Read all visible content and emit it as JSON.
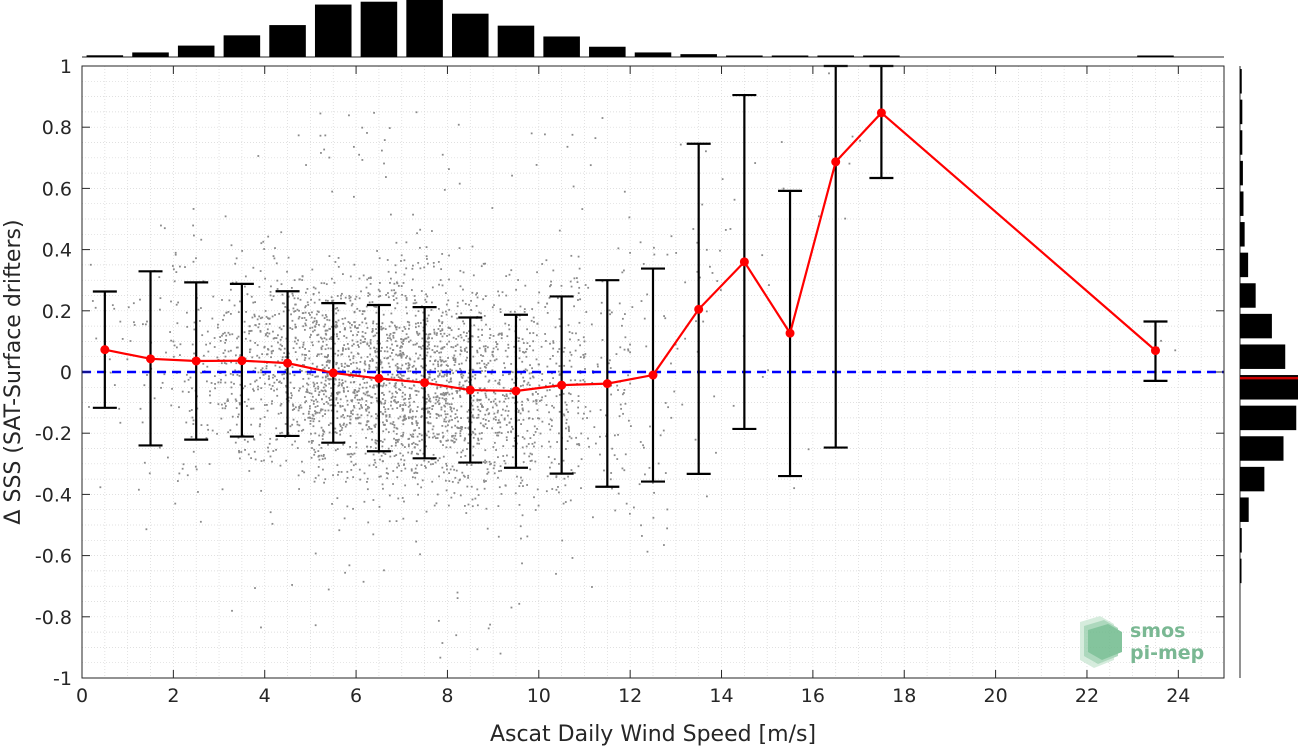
{
  "chart_data": {
    "type": "scatter",
    "xlabel": "Ascat Daily Wind Speed [m/s]",
    "ylabel": "Δ SSS (SAT-Surface drifters)",
    "xlim": [
      0,
      25
    ],
    "ylim": [
      -1,
      1
    ],
    "x_ticks": [
      0,
      2,
      4,
      6,
      8,
      10,
      12,
      14,
      16,
      18,
      20,
      22,
      24
    ],
    "y_ticks": [
      -1,
      -0.8,
      -0.6,
      -0.4,
      -0.2,
      0,
      0.2,
      0.4,
      0.6,
      0.8,
      1
    ],
    "x_tick_labels": [
      "0",
      "2",
      "4",
      "6",
      "8",
      "10",
      "12",
      "14",
      "16",
      "18",
      "20",
      "22",
      "24"
    ],
    "y_tick_labels": [
      "-1",
      "-0.8",
      "-0.6",
      "-0.4",
      "-0.2",
      "0",
      "0.2",
      "0.4",
      "0.6",
      "0.8",
      "1"
    ],
    "grid": "minor dotted",
    "reference_line": {
      "y": 0,
      "color": "#0000ff",
      "style": "dashed"
    },
    "series": [
      {
        "type": "line-errorbar",
        "color": "#ff0000",
        "x": [
          0.5,
          1.5,
          2.5,
          3.5,
          4.5,
          5.5,
          6.5,
          7.5,
          8.5,
          9.5,
          10.5,
          11.5,
          12.5,
          13.5,
          14.5,
          15.5,
          16.5,
          17.5,
          23.5
        ],
        "mean": [
          0.073,
          0.043,
          0.036,
          0.037,
          0.029,
          -0.003,
          -0.021,
          -0.035,
          -0.059,
          -0.062,
          -0.043,
          -0.038,
          -0.01,
          0.205,
          0.36,
          0.127,
          0.687,
          0.847,
          0.07
        ],
        "err_low": [
          -0.117,
          -0.24,
          -0.221,
          -0.211,
          -0.209,
          -0.231,
          -0.259,
          -0.282,
          -0.296,
          -0.313,
          -0.332,
          -0.375,
          -0.358,
          -0.333,
          -0.186,
          -0.34,
          -0.247,
          0.634,
          -0.029
        ],
        "err_high": [
          0.263,
          0.329,
          0.293,
          0.288,
          0.264,
          0.225,
          0.219,
          0.212,
          0.178,
          0.187,
          0.247,
          0.3,
          0.338,
          0.746,
          0.905,
          0.592,
          1.0,
          1.0,
          0.165
        ]
      }
    ],
    "scatter_density": {
      "color": "#8a8a8a",
      "x_bin_centers": [
        0.5,
        1.5,
        2.5,
        3.5,
        4.5,
        5.5,
        6.5,
        7.5,
        8.5,
        9.5,
        10.5,
        11.5,
        12.5,
        13.5,
        14.5,
        15.5,
        16.5,
        17.5,
        23.5
      ],
      "relative_counts": [
        0.03,
        0.08,
        0.2,
        0.38,
        0.56,
        0.92,
        0.97,
        1.0,
        0.76,
        0.55,
        0.36,
        0.18,
        0.08,
        0.05,
        0.02,
        0.01,
        0.01,
        0.005,
        0.005
      ]
    },
    "top_histogram": {
      "bin_centers": [
        0.5,
        1.5,
        2.5,
        3.5,
        4.5,
        5.5,
        6.5,
        7.5,
        8.5,
        9.5,
        10.5,
        11.5,
        12.5,
        13.5,
        14.5,
        15.5,
        16.5,
        17.5,
        23.5
      ],
      "relative_counts": [
        0.03,
        0.08,
        0.2,
        0.38,
        0.56,
        0.92,
        0.97,
        1.0,
        0.76,
        0.55,
        0.36,
        0.18,
        0.08,
        0.05,
        0.02,
        0.01,
        0.01,
        0.005,
        0.005
      ]
    },
    "right_histogram": {
      "bin_centers": [
        -0.65,
        -0.55,
        -0.45,
        -0.35,
        -0.25,
        -0.15,
        -0.05,
        0.05,
        0.15,
        0.25,
        0.35,
        0.45,
        0.55,
        0.65,
        0.75,
        0.85,
        0.95
      ],
      "relative_counts": [
        0.02,
        0.03,
        0.15,
        0.42,
        0.75,
        0.97,
        1.0,
        0.78,
        0.55,
        0.27,
        0.14,
        0.08,
        0.06,
        0.05,
        0.04,
        0.04,
        0.03
      ],
      "median_marker": {
        "y": -0.02,
        "color": "#cc0000"
      }
    }
  },
  "logo": {
    "line1": "smos",
    "line2": "pi-mep"
  }
}
